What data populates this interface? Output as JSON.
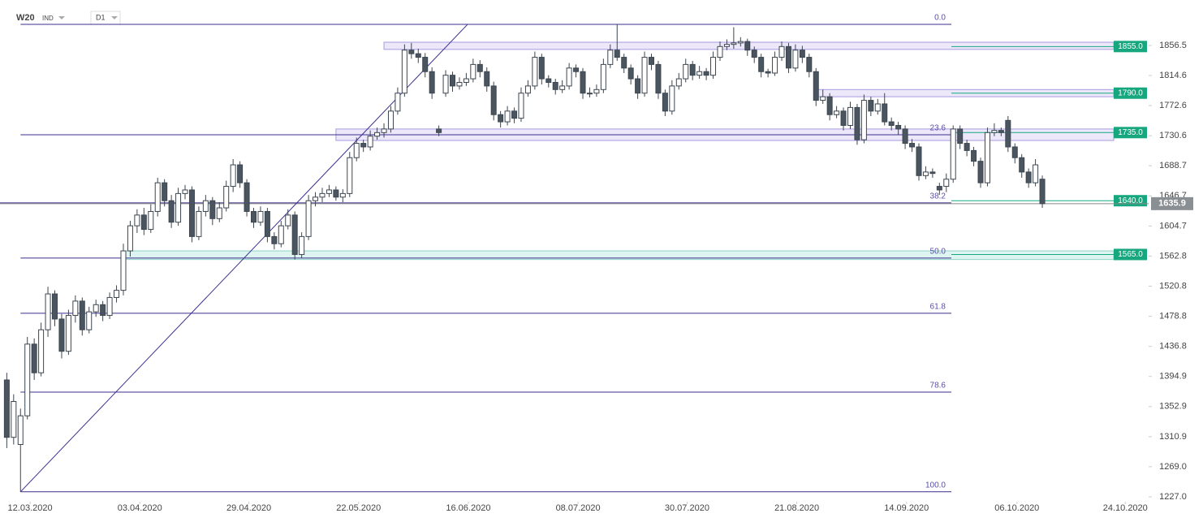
{
  "header": {
    "symbol": "W20",
    "market": "IND",
    "interval": "D1"
  },
  "chart_data": {
    "type": "candlestick",
    "ylim": [
      1220.2,
      1919.9
    ],
    "xlim": [
      -0.99,
      166.5
    ],
    "yticks": [
      {
        "value": 1227,
        "label": "1227.0"
      },
      {
        "value": 1269,
        "label": "1269.0"
      },
      1310.9,
      1352.9,
      1394.9,
      1436.8,
      1478.8,
      1520.8,
      1562.8,
      1604.7,
      1646.7,
      1688.7,
      1730.6,
      1772.6,
      1814.6,
      1856.5
    ],
    "xticks": [
      {
        "value": 3.4,
        "label": "12.03.2020"
      },
      {
        "value": 19.4,
        "label": "03.04.2020"
      },
      {
        "value": 35.3,
        "label": "29.04.2020"
      },
      {
        "value": 51.3,
        "label": "22.05.2020"
      },
      {
        "value": 67.3,
        "label": "16.06.2020"
      },
      {
        "value": 83.3,
        "label": "08.07.2020"
      },
      {
        "value": 99.2,
        "label": "30.07.2020"
      },
      {
        "value": 115.2,
        "label": "21.08.2020"
      },
      {
        "value": 131.2,
        "label": "14.09.2020"
      },
      {
        "value": 147.3,
        "label": "06.10.2020"
      },
      {
        "value": 163.1,
        "label": "24.10.2020"
      }
    ],
    "up_color": "#ffffff",
    "down_color": "#4a5560",
    "line_color": "#3b2f8f",
    "level_color": "#17a77e",
    "candles": [
      [
        1390,
        1400,
        1295,
        1310
      ],
      [
        1310,
        1370,
        1300,
        1360
      ],
      [
        1300,
        1350,
        1234,
        1340
      ],
      [
        1340,
        1450,
        1335,
        1440
      ],
      [
        1440,
        1448,
        1390,
        1400
      ],
      [
        1400,
        1470,
        1395,
        1460
      ],
      [
        1460,
        1520,
        1450,
        1510
      ],
      [
        1510,
        1515,
        1465,
        1475
      ],
      [
        1475,
        1482,
        1420,
        1430
      ],
      [
        1430,
        1488,
        1425,
        1480
      ],
      [
        1480,
        1508,
        1470,
        1500
      ],
      [
        1500,
        1505,
        1452,
        1460
      ],
      [
        1460,
        1492,
        1455,
        1485
      ],
      [
        1485,
        1502,
        1478,
        1495
      ],
      [
        1495,
        1500,
        1472,
        1480
      ],
      [
        1480,
        1512,
        1475,
        1505
      ],
      [
        1505,
        1522,
        1498,
        1515
      ],
      [
        1515,
        1580,
        1508,
        1570
      ],
      [
        1570,
        1612,
        1562,
        1605
      ],
      [
        1605,
        1628,
        1595,
        1620
      ],
      [
        1620,
        1630,
        1592,
        1600
      ],
      [
        1600,
        1635,
        1595,
        1625
      ],
      [
        1625,
        1672,
        1618,
        1665
      ],
      [
        1665,
        1670,
        1632,
        1640
      ],
      [
        1640,
        1648,
        1602,
        1610
      ],
      [
        1610,
        1658,
        1605,
        1650
      ],
      [
        1650,
        1662,
        1642,
        1655
      ],
      [
        1655,
        1660,
        1582,
        1590
      ],
      [
        1590,
        1632,
        1585,
        1625
      ],
      [
        1625,
        1648,
        1618,
        1640
      ],
      [
        1640,
        1645,
        1606,
        1615
      ],
      [
        1615,
        1638,
        1610,
        1630
      ],
      [
        1630,
        1668,
        1625,
        1660
      ],
      [
        1660,
        1698,
        1652,
        1690
      ],
      [
        1690,
        1695,
        1658,
        1665
      ],
      [
        1665,
        1670,
        1618,
        1625
      ],
      [
        1625,
        1630,
        1602,
        1610
      ],
      [
        1610,
        1632,
        1605,
        1625
      ],
      [
        1625,
        1630,
        1582,
        1590
      ],
      [
        1590,
        1596,
        1572,
        1580
      ],
      [
        1580,
        1612,
        1575,
        1605
      ],
      [
        1605,
        1628,
        1600,
        1620
      ],
      [
        1620,
        1625,
        1558,
        1565
      ],
      [
        1565,
        1596,
        1560,
        1590
      ],
      [
        1590,
        1648,
        1585,
        1640
      ],
      [
        1640,
        1652,
        1632,
        1645
      ],
      [
        1645,
        1658,
        1638,
        1650
      ],
      [
        1650,
        1662,
        1645,
        1655
      ],
      [
        1655,
        1660,
        1640,
        1645
      ],
      [
        1645,
        1656,
        1638,
        1650
      ],
      [
        1650,
        1708,
        1645,
        1700
      ],
      [
        1700,
        1728,
        1695,
        1720
      ],
      [
        1720,
        1725,
        1708,
        1715
      ],
      [
        1715,
        1738,
        1710,
        1730
      ],
      [
        1730,
        1742,
        1725,
        1735
      ],
      [
        1735,
        1748,
        1728,
        1740
      ],
      [
        1740,
        1772,
        1735,
        1765
      ],
      [
        1765,
        1798,
        1760,
        1790
      ],
      [
        1790,
        1858,
        1785,
        1850
      ],
      [
        1850,
        1860,
        1838,
        1845
      ],
      [
        1845,
        1852,
        1832,
        1840
      ],
      [
        1840,
        1846,
        1812,
        1820
      ],
      [
        1820,
        1826,
        1782,
        1790
      ],
      [
        1740,
        1745,
        1730,
        1735
      ],
      [
        1790,
        1822,
        1785,
        1815
      ],
      [
        1815,
        1820,
        1792,
        1800
      ],
      [
        1800,
        1812,
        1795,
        1805
      ],
      [
        1805,
        1818,
        1800,
        1810
      ],
      [
        1810,
        1838,
        1805,
        1830
      ],
      [
        1830,
        1836,
        1812,
        1820
      ],
      [
        1820,
        1826,
        1792,
        1800
      ],
      [
        1800,
        1806,
        1752,
        1760
      ],
      [
        1760,
        1765,
        1742,
        1750
      ],
      [
        1750,
        1772,
        1745,
        1765
      ],
      [
        1765,
        1770,
        1748,
        1755
      ],
      [
        1755,
        1798,
        1750,
        1790
      ],
      [
        1790,
        1808,
        1785,
        1800
      ],
      [
        1800,
        1848,
        1795,
        1840
      ],
      [
        1840,
        1845,
        1802,
        1810
      ],
      [
        1810,
        1815,
        1798,
        1805
      ],
      [
        1805,
        1810,
        1788,
        1795
      ],
      [
        1795,
        1808,
        1790,
        1800
      ],
      [
        1800,
        1832,
        1795,
        1825
      ],
      [
        1825,
        1830,
        1812,
        1820
      ],
      [
        1820,
        1825,
        1782,
        1790
      ],
      [
        1790,
        1798,
        1784,
        1790
      ],
      [
        1790,
        1802,
        1785,
        1795
      ],
      [
        1795,
        1838,
        1790,
        1830
      ],
      [
        1830,
        1858,
        1825,
        1850
      ],
      [
        1850,
        1886,
        1835,
        1840
      ],
      [
        1840,
        1845,
        1818,
        1825
      ],
      [
        1825,
        1830,
        1802,
        1810
      ],
      [
        1810,
        1815,
        1782,
        1790
      ],
      [
        1790,
        1848,
        1785,
        1840
      ],
      [
        1840,
        1845,
        1822,
        1830
      ],
      [
        1830,
        1835,
        1782,
        1790
      ],
      [
        1790,
        1795,
        1758,
        1765
      ],
      [
        1765,
        1808,
        1760,
        1800
      ],
      [
        1800,
        1818,
        1795,
        1810
      ],
      [
        1810,
        1838,
        1805,
        1830
      ],
      [
        1830,
        1835,
        1808,
        1815
      ],
      [
        1815,
        1828,
        1810,
        1820
      ],
      [
        1820,
        1825,
        1808,
        1815
      ],
      [
        1815,
        1848,
        1810,
        1840
      ],
      [
        1840,
        1862,
        1835,
        1855
      ],
      [
        1855,
        1865,
        1850,
        1858
      ],
      [
        1858,
        1882,
        1852,
        1860
      ],
      [
        1860,
        1868,
        1855,
        1862
      ],
      [
        1862,
        1866,
        1842,
        1850
      ],
      [
        1850,
        1855,
        1832,
        1840
      ],
      [
        1840,
        1845,
        1812,
        1820
      ],
      [
        1820,
        1824,
        1812,
        1818
      ],
      [
        1818,
        1848,
        1814,
        1840
      ],
      [
        1840,
        1862,
        1835,
        1855
      ],
      [
        1855,
        1860,
        1818,
        1825
      ],
      [
        1825,
        1858,
        1820,
        1850
      ],
      [
        1850,
        1856,
        1832,
        1840
      ],
      [
        1840,
        1845,
        1812,
        1820
      ],
      [
        1820,
        1825,
        1772,
        1780
      ],
      [
        1780,
        1795,
        1775,
        1785
      ],
      [
        1785,
        1790,
        1752,
        1760
      ],
      [
        1760,
        1772,
        1755,
        1765
      ],
      [
        1765,
        1770,
        1738,
        1745
      ],
      [
        1745,
        1778,
        1740,
        1770
      ],
      [
        1770,
        1775,
        1718,
        1725
      ],
      [
        1725,
        1788,
        1720,
        1780
      ],
      [
        1780,
        1785,
        1758,
        1765
      ],
      [
        1765,
        1782,
        1760,
        1775
      ],
      [
        1775,
        1790,
        1745,
        1750
      ],
      [
        1750,
        1756,
        1738,
        1745
      ],
      [
        1745,
        1750,
        1732,
        1740
      ],
      [
        1740,
        1745,
        1712,
        1720
      ],
      [
        1720,
        1726,
        1708,
        1715
      ],
      [
        1715,
        1720,
        1668,
        1675
      ],
      [
        1675,
        1688,
        1670,
        1680
      ],
      [
        1680,
        1685,
        1672,
        1678
      ],
      [
        1660,
        1665,
        1648,
        1655
      ],
      [
        1660,
        1678,
        1652,
        1670
      ],
      [
        1670,
        1745,
        1665,
        1740
      ],
      [
        1740,
        1745,
        1712,
        1720
      ],
      [
        1720,
        1725,
        1702,
        1710
      ],
      [
        1710,
        1715,
        1688,
        1695
      ],
      [
        1695,
        1700,
        1658,
        1665
      ],
      [
        1665,
        1742,
        1660,
        1735
      ],
      [
        1735,
        1748,
        1730,
        1738
      ],
      [
        1738,
        1742,
        1730,
        1735
      ],
      [
        1752,
        1758,
        1708,
        1715
      ],
      [
        1715,
        1720,
        1692,
        1700
      ],
      [
        1700,
        1705,
        1672,
        1680
      ],
      [
        1680,
        1685,
        1658,
        1665
      ],
      [
        1665,
        1698,
        1660,
        1690
      ],
      [
        1670,
        1675,
        1630,
        1635.9
      ]
    ],
    "fib_levels": [
      {
        "label": "0.0",
        "value": 1886
      },
      {
        "label": "23.6",
        "value": 1732
      },
      {
        "label": "38.2",
        "value": 1637
      },
      {
        "label": "50.0",
        "value": 1560
      },
      {
        "label": "61.8",
        "value": 1483
      },
      {
        "label": "78.6",
        "value": 1373
      },
      {
        "label": "100.0",
        "value": 1234
      }
    ],
    "trend_line": {
      "x": [
        2,
        67.2
      ],
      "y": [
        1234,
        1886
      ]
    },
    "levels": [
      {
        "value": 1855,
        "label": "1855.0",
        "from": 55,
        "zone": [
          1851,
          1861
        ]
      },
      {
        "value": 1790,
        "label": "1790.0",
        "from": 118,
        "zone": [
          1785,
          1795
        ]
      },
      {
        "value": 1735,
        "label": "1735.0",
        "from": 48,
        "zone": [
          1724,
          1740
        ]
      },
      {
        "value": 1640,
        "label": "1640.0",
        "from": -0.99
      },
      {
        "value": 1565,
        "label": "1565.0",
        "from": 17,
        "zone": [
          1558,
          1570
        ]
      }
    ],
    "last_price": 1635.9
  }
}
